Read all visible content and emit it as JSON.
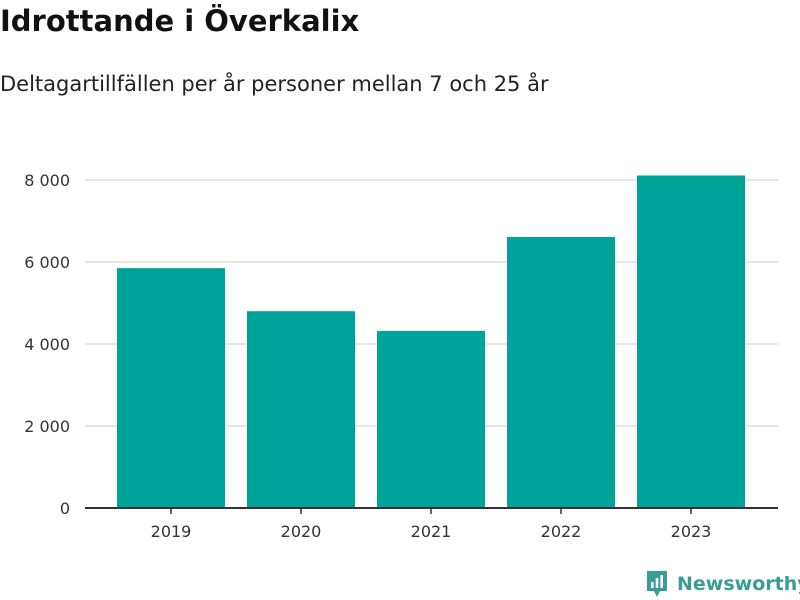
{
  "chart_data": {
    "type": "bar",
    "title": "Idrottande i Överkalix",
    "subtitle": "Deltagartillfällen per år personer mellan 7 och 25 år",
    "categories": [
      "2019",
      "2020",
      "2021",
      "2022",
      "2023"
    ],
    "values": [
      5850,
      4800,
      4320,
      6610,
      8110
    ],
    "ylim": [
      0,
      8000
    ],
    "yticks": [
      0,
      2000,
      4000,
      6000,
      8000
    ],
    "ytick_labels": [
      "0",
      "2 000",
      "4 000",
      "6 000",
      "8 000"
    ],
    "xlabel": "",
    "ylabel": "",
    "grid": true,
    "bar_color": "#00a39a"
  },
  "brand": {
    "label": "Newsworthy",
    "icon": "newsworthy-logo-icon",
    "color": "#3a9d93"
  }
}
